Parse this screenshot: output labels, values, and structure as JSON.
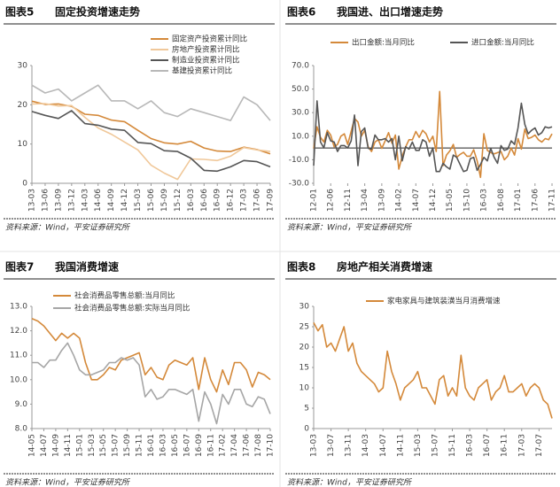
{
  "chart_data": [
    {
      "type": "line",
      "label": "图表5",
      "title": "固定投资增速走势",
      "source": "资料来源：Wind，平安证券研究所",
      "legend": "top-right",
      "categories": [
        "13-03",
        "13-06",
        "13-09",
        "13-12",
        "14-03",
        "14-06",
        "14-09",
        "14-12",
        "15-03",
        "15-06",
        "15-09",
        "15-12",
        "16-03",
        "16-06",
        "16-09",
        "16-12",
        "17-03",
        "17-06",
        "17-09"
      ],
      "ylim": [
        0,
        30
      ],
      "yticks": [
        0,
        10,
        20,
        30
      ],
      "series": [
        {
          "name": "固定资产投资累计同比",
          "color": "#d4893a",
          "values": [
            20.9,
            20.1,
            20.2,
            19.6,
            17.6,
            17.3,
            16.1,
            15.7,
            13.5,
            11.4,
            10.3,
            10,
            10.7,
            9,
            8.2,
            8.1,
            9.2,
            8.6,
            7.5
          ]
        },
        {
          "name": "房地产投资累计同比",
          "color": "#f0c89a",
          "values": [
            20.2,
            20.3,
            19.7,
            19.8,
            16.8,
            14.1,
            12.5,
            10.5,
            8.5,
            4.6,
            2.6,
            1.0,
            6.2,
            6.1,
            5.8,
            6.9,
            9.1,
            8.5,
            8.1
          ]
        },
        {
          "name": "制造业投资累计同比",
          "color": "#555555",
          "values": [
            18.3,
            17.3,
            16.5,
            18.5,
            15.2,
            14.8,
            13.8,
            13.5,
            10.4,
            10.1,
            8.3,
            8.1,
            6.4,
            3.3,
            3.1,
            4.2,
            5.8,
            5.5,
            4.2
          ]
        },
        {
          "name": "基建投资累计同比",
          "color": "#b8b8b8",
          "values": [
            25,
            23,
            24,
            21,
            23,
            25,
            21,
            21,
            19,
            21,
            18,
            17,
            19,
            18,
            17,
            16,
            22,
            20,
            16
          ]
        }
      ]
    },
    {
      "type": "line",
      "label": "图表6",
      "title": "我国进、出口增速走势",
      "source": "资料来源：Wind，平安证券研究所",
      "legend": "top",
      "categories": [
        "12-01",
        null,
        null,
        null,
        null,
        "12-06",
        null,
        null,
        null,
        null,
        "12-11",
        null,
        null,
        null,
        null,
        "13-04",
        null,
        null,
        null,
        null,
        "13-09",
        null,
        null,
        null,
        null,
        "14-02",
        null,
        null,
        null,
        null,
        "14-07",
        null,
        null,
        null,
        null,
        "14-12",
        null,
        null,
        null,
        null,
        "15-05",
        null,
        null,
        null,
        null,
        "15-10",
        null,
        null,
        null,
        null,
        "16-03",
        null,
        null,
        null,
        null,
        "16-08",
        null,
        null,
        null,
        null,
        "17-01",
        null,
        null,
        null,
        null,
        "17-06",
        null,
        null,
        null,
        null,
        "17-11"
      ],
      "ylim": [
        -30,
        70
      ],
      "yticks": [
        {
          "value": -30,
          "label": "-30.0"
        },
        {
          "value": -10,
          "label": "-10.0"
        },
        {
          "value": 10,
          "label": "10.0"
        },
        {
          "value": 30,
          "label": "30.0"
        },
        {
          "value": 50,
          "label": "50.0"
        },
        {
          "value": 70,
          "label": "70.0"
        }
      ],
      "series": [
        {
          "name": "出口金额:当月同比",
          "color": "#d4893a",
          "values": [
            -0.5,
            18,
            9,
            5,
            15,
            11,
            1,
            3,
            10,
            12,
            3,
            14,
            25,
            22,
            10,
            15,
            1,
            -3,
            5,
            7,
            -0.3,
            6,
            13,
            4,
            11,
            -18,
            -7,
            1,
            7,
            7,
            14,
            9,
            15,
            12,
            5,
            10,
            -3,
            48,
            -15,
            -6,
            -2.5,
            3,
            -8,
            -5.5,
            -3.7,
            -7,
            -7,
            -1.5,
            -11,
            -25,
            12,
            -2,
            -4,
            -5,
            -4,
            -3,
            -10,
            -7,
            0,
            -6,
            8,
            -1,
            16,
            8,
            9,
            11,
            7,
            5,
            8,
            7,
            12
          ]
        },
        {
          "name": "进口金额:当月同比",
          "color": "#555555",
          "values": [
            -15,
            40,
            5,
            0,
            13,
            6,
            5,
            -3,
            2,
            2,
            0,
            6,
            28,
            -15,
            14,
            17,
            -0.3,
            -1,
            11,
            7,
            7,
            8,
            5,
            8,
            -10,
            10,
            -11,
            1,
            -1,
            5,
            -2,
            -2,
            7,
            5,
            -7,
            0,
            -20,
            -20,
            -13,
            -16,
            -18,
            -6,
            -8,
            -14,
            -20,
            -19,
            -9,
            -8,
            -19,
            -14,
            -8,
            -11,
            -0.4,
            -8,
            -13,
            2,
            -2,
            -1,
            6,
            3,
            17,
            38,
            20,
            12,
            15,
            17,
            11,
            13,
            18,
            17,
            18
          ]
        }
      ]
    },
    {
      "type": "line",
      "label": "图表7",
      "title": "我国消费增速",
      "source": "资料来源：Wind，平安证券研究所",
      "legend": "top-left",
      "categories": [
        "14-05",
        null,
        "14-07",
        null,
        "14-09",
        null,
        "14-11",
        null,
        "15-01",
        null,
        "15-03",
        null,
        "15-05",
        null,
        "15-07",
        null,
        "15-09",
        null,
        "15-11",
        null,
        "16-01",
        null,
        "16-03",
        null,
        "16-05",
        null,
        "16-07",
        null,
        "16-09",
        null,
        "16-11",
        null,
        "17-02",
        null,
        "17-04",
        null,
        "17-06",
        null,
        "17-08",
        null,
        "17-10"
      ],
      "ylim": [
        8,
        13
      ],
      "yticks": [
        {
          "value": 8,
          "label": "8.0"
        },
        {
          "value": 9,
          "label": "9.0"
        },
        {
          "value": 10,
          "label": "10.0"
        },
        {
          "value": 11,
          "label": "11.0"
        },
        {
          "value": 12,
          "label": "12.0"
        },
        {
          "value": 13,
          "label": "13.0"
        }
      ],
      "series": [
        {
          "name": "社会消费品零售总额:当月同比",
          "color": "#d4893a",
          "values": [
            12.5,
            12.4,
            12.2,
            11.9,
            11.6,
            11.9,
            11.7,
            11.9,
            11.7,
            10.7,
            10.0,
            10.0,
            10.2,
            10.5,
            10.4,
            10.8,
            10.9,
            11.0,
            11.1,
            10.2,
            10.5,
            10.1,
            10.0,
            10.6,
            10.8,
            10.7,
            10.6,
            10.9,
            9.6,
            10.9,
            10.0,
            9.5,
            10.4,
            9.8,
            10.7,
            10.7,
            10.4,
            9.7,
            10.3,
            10.2,
            10.0
          ]
        },
        {
          "name": "社会消费品零售总额:实际当月同比",
          "color": "#a6a6a6",
          "values": [
            10.7,
            10.7,
            10.5,
            10.8,
            10.8,
            11.2,
            11.5,
            11.0,
            10.4,
            10.2,
            10.2,
            10.3,
            10.4,
            10.7,
            10.7,
            10.9,
            10.8,
            10.9,
            10.6,
            9.3,
            9.6,
            9.2,
            9.3,
            9.6,
            9.6,
            9.5,
            9.4,
            9.6,
            8.3,
            9.5,
            9.0,
            8.2,
            9.4,
            9.0,
            9.6,
            9.6,
            9.0,
            8.9,
            9.3,
            9.2,
            8.6
          ]
        }
      ]
    },
    {
      "type": "line",
      "label": "图表8",
      "title": "房地产相关消费增速",
      "source": "资料来源：Wind，平安证券研究所",
      "legend": "top-center",
      "categories": [
        "13-03",
        null,
        null,
        null,
        "13-07",
        null,
        null,
        null,
        "13-11",
        null,
        null,
        null,
        "14-03",
        null,
        null,
        null,
        "14-07",
        null,
        null,
        null,
        "14-11",
        null,
        null,
        null,
        "15-03",
        null,
        null,
        null,
        "15-07",
        null,
        null,
        null,
        "15-11",
        null,
        null,
        null,
        "16-03",
        null,
        null,
        null,
        "16-07",
        null,
        null,
        null,
        "16-11",
        null,
        null,
        null,
        "17-03",
        null,
        null,
        null,
        "17-07",
        null,
        null,
        null
      ],
      "ylim": [
        0,
        30
      ],
      "yticks": [
        0,
        5,
        10,
        15,
        20,
        25,
        30
      ],
      "series": [
        {
          "name": "家电家具与建筑装潢当月消费增速",
          "color": "#d4893a",
          "values": [
            26,
            24,
            25.5,
            20,
            21,
            19,
            22,
            25,
            19,
            21,
            16,
            14,
            13,
            12,
            11,
            9,
            10,
            19,
            14,
            11,
            7,
            10,
            11,
            12,
            14,
            10,
            10,
            8,
            6,
            12,
            13,
            8,
            10,
            8,
            18,
            10,
            8,
            7,
            10,
            11,
            12,
            7,
            9,
            10,
            13,
            9,
            9,
            10,
            11,
            8,
            10,
            11,
            10,
            7,
            6,
            2.5
          ]
        }
      ]
    }
  ]
}
